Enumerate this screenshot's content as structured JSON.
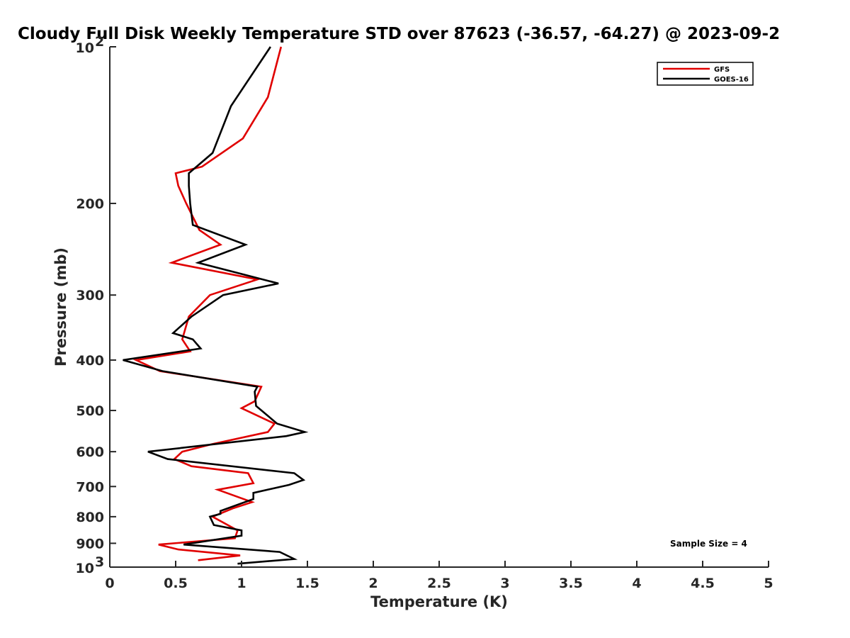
{
  "chart_data": {
    "type": "line",
    "title": "Cloudy Full Disk Weekly Temperature STD over 87623 (-36.57, -64.27) @ 2023-09-2",
    "xlabel": "Temperature (K)",
    "ylabel": "Pressure (mb)",
    "xlim": [
      0,
      5
    ],
    "ylim": [
      100,
      1000
    ],
    "y_scale": "log",
    "y_reversed": true,
    "grid": false,
    "legend_position": "top-right",
    "x_ticks": [
      "0",
      "0.5",
      "1",
      "1.5",
      "2",
      "2.5",
      "3",
      "3.5",
      "4",
      "4.5",
      "5"
    ],
    "y_ticks": [
      {
        "value": 100,
        "base": "10",
        "exp": "2"
      },
      {
        "value": 200,
        "label": "200"
      },
      {
        "value": 300,
        "label": "300"
      },
      {
        "value": 400,
        "label": "400"
      },
      {
        "value": 500,
        "label": "500"
      },
      {
        "value": 600,
        "label": "600"
      },
      {
        "value": 700,
        "label": "700"
      },
      {
        "value": 800,
        "label": "800"
      },
      {
        "value": 900,
        "label": "900"
      },
      {
        "value": 1000,
        "base": "10",
        "exp": "3"
      }
    ],
    "series": [
      {
        "name": "GFS",
        "color": "#e00000",
        "points": [
          [
            1.3,
            100
          ],
          [
            1.2,
            125
          ],
          [
            1.01,
            150
          ],
          [
            0.7,
            170
          ],
          [
            0.5,
            175
          ],
          [
            0.52,
            185
          ],
          [
            0.58,
            200
          ],
          [
            0.68,
            225
          ],
          [
            0.84,
            240
          ],
          [
            0.47,
            260
          ],
          [
            1.12,
            280
          ],
          [
            0.76,
            300
          ],
          [
            0.6,
            330
          ],
          [
            0.55,
            365
          ],
          [
            0.61,
            385
          ],
          [
            0.2,
            400
          ],
          [
            0.38,
            420
          ],
          [
            1.15,
            450
          ],
          [
            1.1,
            480
          ],
          [
            1.0,
            495
          ],
          [
            1.25,
            530
          ],
          [
            1.2,
            550
          ],
          [
            0.78,
            580
          ],
          [
            0.55,
            600
          ],
          [
            0.49,
            620
          ],
          [
            0.62,
            640
          ],
          [
            1.05,
            660
          ],
          [
            1.09,
            690
          ],
          [
            0.82,
            710
          ],
          [
            1.08,
            750
          ],
          [
            0.94,
            770
          ],
          [
            0.78,
            800
          ],
          [
            0.97,
            850
          ],
          [
            0.95,
            880
          ],
          [
            0.37,
            905
          ],
          [
            0.52,
            925
          ],
          [
            0.99,
            950
          ],
          [
            0.67,
            970
          ]
        ]
      },
      {
        "name": "GOES-16",
        "color": "#000000",
        "points": [
          [
            1.22,
            100
          ],
          [
            0.92,
            130
          ],
          [
            0.78,
            160
          ],
          [
            0.6,
            175
          ],
          [
            0.6,
            185
          ],
          [
            0.61,
            200
          ],
          [
            0.63,
            220
          ],
          [
            1.03,
            240
          ],
          [
            0.67,
            260
          ],
          [
            1.28,
            285
          ],
          [
            0.86,
            300
          ],
          [
            0.62,
            330
          ],
          [
            0.48,
            355
          ],
          [
            0.63,
            365
          ],
          [
            0.69,
            380
          ],
          [
            0.1,
            400
          ],
          [
            0.4,
            420
          ],
          [
            1.12,
            450
          ],
          [
            1.1,
            460
          ],
          [
            1.11,
            490
          ],
          [
            1.27,
            530
          ],
          [
            1.48,
            550
          ],
          [
            1.34,
            560
          ],
          [
            0.29,
            600
          ],
          [
            0.44,
            620
          ],
          [
            1.4,
            660
          ],
          [
            1.47,
            680
          ],
          [
            1.36,
            695
          ],
          [
            1.09,
            720
          ],
          [
            1.09,
            740
          ],
          [
            0.84,
            780
          ],
          [
            0.84,
            790
          ],
          [
            0.76,
            800
          ],
          [
            0.79,
            830
          ],
          [
            1.0,
            850
          ],
          [
            1.0,
            870
          ],
          [
            0.56,
            905
          ],
          [
            1.29,
            935
          ],
          [
            1.4,
            965
          ],
          [
            0.97,
            985
          ]
        ]
      }
    ],
    "annotation": "Sample Size = 4"
  }
}
